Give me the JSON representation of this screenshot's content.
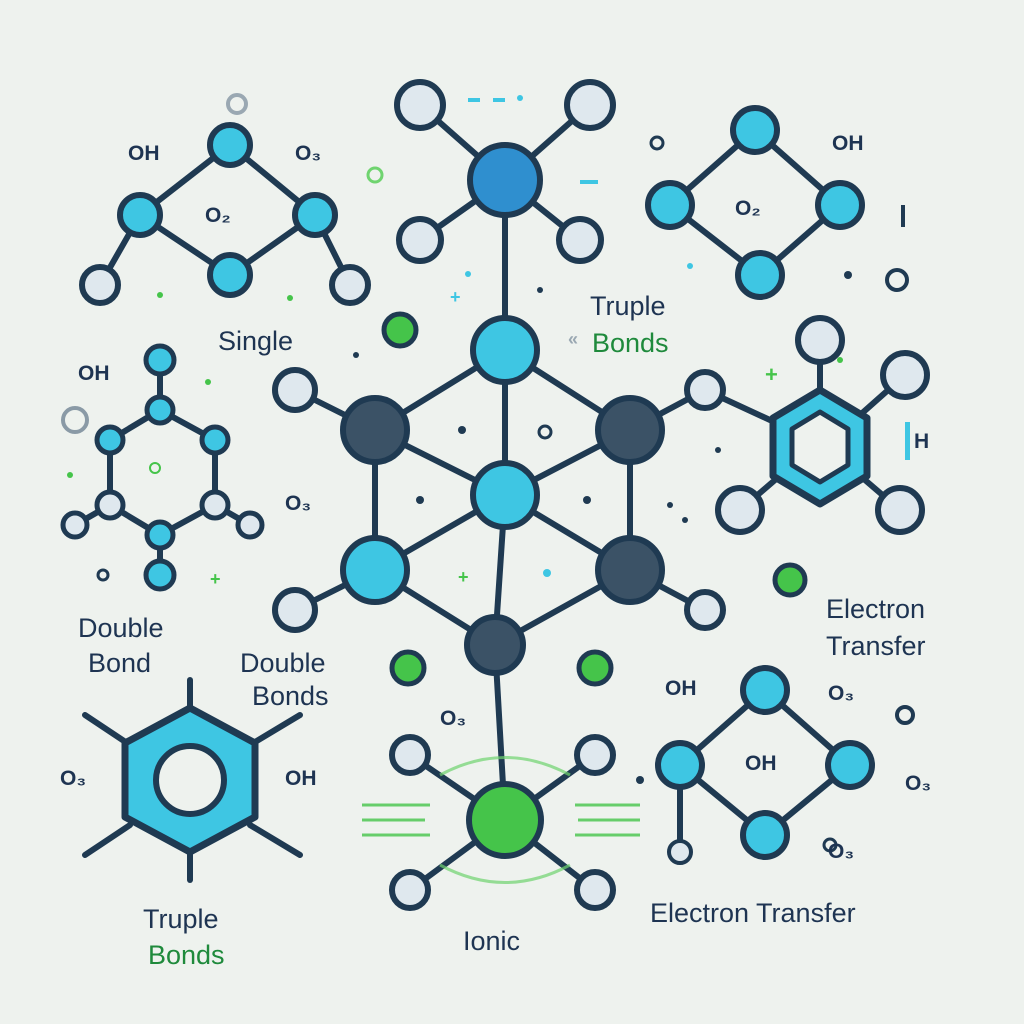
{
  "colors": {
    "background": "#eef2ee",
    "bond": "#1f3a52",
    "atom_cyan": "#3ec6e3",
    "atom_light": "#dfe8ee",
    "atom_dark": "#3b5266",
    "atom_blue": "#2f8fcf",
    "atom_green": "#45c44a",
    "label_navy": "#1e3452",
    "label_green": "#1f8a3c"
  },
  "labels": {
    "single": "Single",
    "truple_bonds_top_line1": "Truple",
    "truple_bonds_top_line2": "Bonds",
    "double_bond_line1": "Double",
    "double_bond_line2": "Bond",
    "double_bonds_line1": "Double",
    "double_bonds_line2": "Bonds",
    "electron_transfer_right_line1": "Electron",
    "electron_transfer_right_line2": "Transfer",
    "truple_bonds_bottom_line1": "Truple",
    "truple_bonds_bottom_line2": "Bonds",
    "ionic": "Ionic",
    "electron_transfer_bottom": "Electron Transfer"
  },
  "formulas": {
    "f1": "OH",
    "f2": "O₃",
    "f3": "O₂",
    "f4": "OH",
    "f5": "O₂",
    "f6": "OH",
    "f7": "O₃",
    "f8": "O₃",
    "f9": "OH",
    "f10": "H",
    "f11": "O₃",
    "f12": "OH",
    "f13": "O₃",
    "f14": "OH",
    "f15": "O₃",
    "f16": "O₃"
  }
}
